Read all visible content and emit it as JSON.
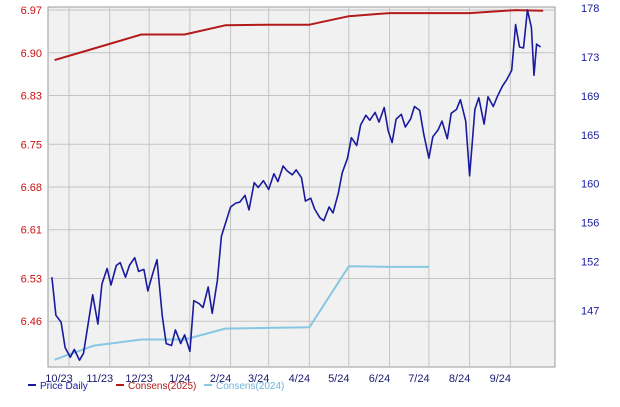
{
  "chart_data": {
    "type": "line",
    "title": "",
    "xlabel": "",
    "legend_position": "bottom-left",
    "grid": true,
    "x_ticks": [
      "10/23",
      "11/23",
      "12/23",
      "1/24",
      "2/24",
      "3/24",
      "4/24",
      "5/24",
      "6/24",
      "7/24",
      "8/24",
      "9/24"
    ],
    "x_range": [
      "2023-09-15",
      "2024-10-05"
    ],
    "left_axis": {
      "ticks": [
        "6.97",
        "6.90",
        "6.83",
        "6.75",
        "6.68",
        "6.61",
        "6.53",
        "6.46"
      ],
      "ylim": [
        6.385,
        6.975
      ],
      "color": "#cc1111"
    },
    "right_axis": {
      "ticks": [
        "178",
        "173",
        "169",
        "165",
        "160",
        "156",
        "152",
        "147"
      ],
      "ylim": [
        141.2,
        178.1
      ],
      "color": "#1a1a9e"
    },
    "series": [
      {
        "name": "Price Daily",
        "axis": "right",
        "color": "#1a1a9e",
        "points": [
          [
            "2023-09-18",
            150.4
          ],
          [
            "2023-09-21",
            146.5
          ],
          [
            "2023-09-25",
            145.8
          ],
          [
            "2023-09-28",
            143.2
          ],
          [
            "2023-10-02",
            142.2
          ],
          [
            "2023-10-05",
            143.0
          ],
          [
            "2023-10-09",
            141.9
          ],
          [
            "2023-10-12",
            142.6
          ],
          [
            "2023-10-16",
            146.0
          ],
          [
            "2023-10-19",
            148.6
          ],
          [
            "2023-10-23",
            145.6
          ],
          [
            "2023-10-26",
            149.7
          ],
          [
            "2023-10-30",
            151.3
          ],
          [
            "2023-11-02",
            149.6
          ],
          [
            "2023-11-06",
            151.6
          ],
          [
            "2023-11-09",
            151.9
          ],
          [
            "2023-11-13",
            150.4
          ],
          [
            "2023-11-16",
            151.6
          ],
          [
            "2023-11-20",
            152.4
          ],
          [
            "2023-11-23",
            151.0
          ],
          [
            "2023-11-27",
            151.2
          ],
          [
            "2023-11-30",
            149.0
          ],
          [
            "2023-12-04",
            150.9
          ],
          [
            "2023-12-07",
            152.2
          ],
          [
            "2023-12-11",
            146.4
          ],
          [
            "2023-12-14",
            143.6
          ],
          [
            "2023-12-18",
            143.4
          ],
          [
            "2023-12-21",
            145.0
          ],
          [
            "2023-12-25",
            143.6
          ],
          [
            "2023-12-28",
            144.5
          ],
          [
            "2024-01-01",
            142.8
          ],
          [
            "2024-01-04",
            148.0
          ],
          [
            "2024-01-08",
            147.7
          ],
          [
            "2024-01-11",
            147.3
          ],
          [
            "2024-01-15",
            149.4
          ],
          [
            "2024-01-18",
            146.7
          ],
          [
            "2024-01-22",
            150.1
          ],
          [
            "2024-01-25",
            154.6
          ],
          [
            "2024-01-29",
            156.3
          ],
          [
            "2024-02-01",
            157.6
          ],
          [
            "2024-02-05",
            158.0
          ],
          [
            "2024-02-08",
            158.1
          ],
          [
            "2024-02-12",
            158.8
          ],
          [
            "2024-02-15",
            157.3
          ],
          [
            "2024-02-19",
            160.1
          ],
          [
            "2024-02-22",
            159.6
          ],
          [
            "2024-02-26",
            160.3
          ],
          [
            "2024-03-01",
            159.4
          ],
          [
            "2024-03-05",
            161.0
          ],
          [
            "2024-03-08",
            160.2
          ],
          [
            "2024-03-12",
            161.8
          ],
          [
            "2024-03-15",
            161.3
          ],
          [
            "2024-03-19",
            160.9
          ],
          [
            "2024-03-22",
            161.4
          ],
          [
            "2024-03-26",
            160.6
          ],
          [
            "2024-03-29",
            158.2
          ],
          [
            "2024-04-02",
            158.5
          ],
          [
            "2024-04-05",
            157.4
          ],
          [
            "2024-04-09",
            156.5
          ],
          [
            "2024-04-12",
            156.2
          ],
          [
            "2024-04-16",
            157.6
          ],
          [
            "2024-04-19",
            157.0
          ],
          [
            "2024-04-23",
            159.0
          ],
          [
            "2024-04-26",
            161.1
          ],
          [
            "2024-04-30",
            162.6
          ],
          [
            "2024-05-03",
            164.7
          ],
          [
            "2024-05-07",
            163.9
          ],
          [
            "2024-05-10",
            166.0
          ],
          [
            "2024-05-14",
            167.0
          ],
          [
            "2024-05-17",
            166.5
          ],
          [
            "2024-05-21",
            167.3
          ],
          [
            "2024-05-24",
            166.3
          ],
          [
            "2024-05-28",
            167.8
          ],
          [
            "2024-05-31",
            165.4
          ],
          [
            "2024-06-03",
            164.2
          ],
          [
            "2024-06-06",
            166.6
          ],
          [
            "2024-06-10",
            167.1
          ],
          [
            "2024-06-13",
            165.8
          ],
          [
            "2024-06-17",
            166.6
          ],
          [
            "2024-06-20",
            167.9
          ],
          [
            "2024-06-24",
            167.5
          ],
          [
            "2024-06-27",
            165.1
          ],
          [
            "2024-07-01",
            162.6
          ],
          [
            "2024-07-04",
            164.8
          ],
          [
            "2024-07-08",
            165.5
          ],
          [
            "2024-07-11",
            166.4
          ],
          [
            "2024-07-15",
            164.6
          ],
          [
            "2024-07-18",
            167.2
          ],
          [
            "2024-07-22",
            167.6
          ],
          [
            "2024-07-25",
            168.6
          ],
          [
            "2024-07-29",
            166.4
          ],
          [
            "2024-08-01",
            160.8
          ],
          [
            "2024-08-05",
            167.6
          ],
          [
            "2024-08-08",
            168.8
          ],
          [
            "2024-08-12",
            166.1
          ],
          [
            "2024-08-15",
            168.9
          ],
          [
            "2024-08-19",
            167.9
          ],
          [
            "2024-08-22",
            168.9
          ],
          [
            "2024-08-26",
            170.0
          ],
          [
            "2024-08-29",
            170.6
          ],
          [
            "2024-09-02",
            171.6
          ],
          [
            "2024-09-05",
            176.3
          ],
          [
            "2024-09-08",
            174.0
          ],
          [
            "2024-09-11",
            173.9
          ],
          [
            "2024-09-14",
            177.8
          ],
          [
            "2024-09-17",
            176.0
          ],
          [
            "2024-09-19",
            171.1
          ],
          [
            "2024-09-21",
            174.3
          ],
          [
            "2024-09-24",
            174.0
          ]
        ]
      },
      {
        "name": "Consens(2025)",
        "axis": "left",
        "color": "#b31b1b",
        "points": [
          [
            "2023-09-20",
            6.888
          ],
          [
            "2023-10-20",
            6.907
          ],
          [
            "2023-11-25",
            6.93
          ],
          [
            "2023-12-28",
            6.93
          ],
          [
            "2024-01-28",
            6.945
          ],
          [
            "2024-03-01",
            6.946
          ],
          [
            "2024-04-01",
            6.946
          ],
          [
            "2024-05-01",
            6.96
          ],
          [
            "2024-06-01",
            6.965
          ],
          [
            "2024-07-01",
            6.965
          ],
          [
            "2024-08-01",
            6.965
          ],
          [
            "2024-09-05",
            6.97
          ],
          [
            "2024-09-26",
            6.969
          ]
        ]
      },
      {
        "name": "Consens(2024)",
        "axis": "left",
        "color": "#87c7e3",
        "points": [
          [
            "2023-09-20",
            6.397
          ],
          [
            "2023-10-20",
            6.42
          ],
          [
            "2023-11-25",
            6.43
          ],
          [
            "2023-12-28",
            6.43
          ],
          [
            "2024-01-28",
            6.448
          ],
          [
            "2024-03-01",
            6.449
          ],
          [
            "2024-04-01",
            6.45
          ],
          [
            "2024-05-01",
            6.55
          ],
          [
            "2024-06-01",
            6.549
          ],
          [
            "2024-07-01",
            6.549
          ]
        ]
      }
    ]
  }
}
